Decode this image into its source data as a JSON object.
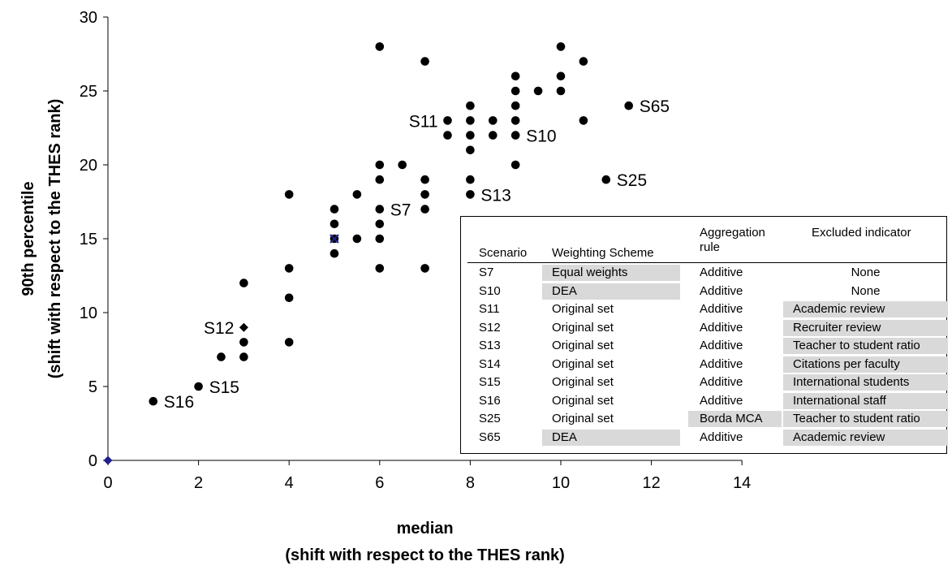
{
  "chart_data": {
    "type": "scatter",
    "xlabel": [
      "median",
      "(shift with respect to the THES rank)"
    ],
    "ylabel": [
      "90th percentile",
      "(shift with respect to the THES rank)"
    ],
    "xlim": [
      0,
      14
    ],
    "ylim": [
      0,
      30
    ],
    "xticks": [
      "0",
      "2",
      "4",
      "6",
      "8",
      "10",
      "12",
      "14"
    ],
    "yticks": [
      "0",
      "5",
      "10",
      "15",
      "20",
      "25",
      "30"
    ],
    "grid": false,
    "marker_color": "#000000",
    "origin_marker_color": "#1f1f8f",
    "points": [
      {
        "x": 1,
        "y": 4
      },
      {
        "x": 2,
        "y": 5
      },
      {
        "x": 2.5,
        "y": 7
      },
      {
        "x": 3,
        "y": 7
      },
      {
        "x": 3,
        "y": 8
      },
      {
        "x": 3,
        "y": 12
      },
      {
        "x": 4,
        "y": 8
      },
      {
        "x": 4,
        "y": 11
      },
      {
        "x": 4,
        "y": 13
      },
      {
        "x": 4,
        "y": 18
      },
      {
        "x": 5,
        "y": 14
      },
      {
        "x": 5,
        "y": 16
      },
      {
        "x": 5,
        "y": 17
      },
      {
        "x": 5.5,
        "y": 15
      },
      {
        "x": 5.5,
        "y": 18
      },
      {
        "x": 6,
        "y": 13
      },
      {
        "x": 6,
        "y": 15
      },
      {
        "x": 6,
        "y": 16
      },
      {
        "x": 6,
        "y": 17
      },
      {
        "x": 6,
        "y": 19
      },
      {
        "x": 6,
        "y": 20
      },
      {
        "x": 6,
        "y": 28
      },
      {
        "x": 6.5,
        "y": 20
      },
      {
        "x": 7,
        "y": 13
      },
      {
        "x": 7,
        "y": 17
      },
      {
        "x": 7,
        "y": 18
      },
      {
        "x": 7,
        "y": 19
      },
      {
        "x": 7,
        "y": 27
      },
      {
        "x": 7.5,
        "y": 22
      },
      {
        "x": 7.5,
        "y": 23
      },
      {
        "x": 8,
        "y": 18
      },
      {
        "x": 8,
        "y": 19
      },
      {
        "x": 8,
        "y": 21
      },
      {
        "x": 8,
        "y": 22
      },
      {
        "x": 8,
        "y": 23
      },
      {
        "x": 8,
        "y": 24
      },
      {
        "x": 8.5,
        "y": 22
      },
      {
        "x": 8.5,
        "y": 23
      },
      {
        "x": 9,
        "y": 20
      },
      {
        "x": 9,
        "y": 22
      },
      {
        "x": 9,
        "y": 23
      },
      {
        "x": 9,
        "y": 24
      },
      {
        "x": 9,
        "y": 25
      },
      {
        "x": 9,
        "y": 26
      },
      {
        "x": 9.5,
        "y": 25
      },
      {
        "x": 10,
        "y": 25
      },
      {
        "x": 10,
        "y": 26
      },
      {
        "x": 10,
        "y": 28
      },
      {
        "x": 10.5,
        "y": 23
      },
      {
        "x": 10.5,
        "y": 27
      },
      {
        "x": 11,
        "y": 19
      },
      {
        "x": 11.5,
        "y": 24
      }
    ],
    "special_points": [
      {
        "x": 0,
        "y": 0,
        "marker": "diamond",
        "color": "#1f1f8f"
      },
      {
        "x": 3,
        "y": 9,
        "marker": "diamond",
        "color": "#000000"
      },
      {
        "x": 5,
        "y": 15,
        "marker": "x",
        "color": "#1f1f8f"
      }
    ],
    "annotations": [
      {
        "text": "S7",
        "x": 6,
        "y": 17,
        "anchor": "right"
      },
      {
        "text": "S10",
        "x": 9,
        "y": 22,
        "anchor": "right"
      },
      {
        "text": "S11",
        "x": 7.5,
        "y": 23,
        "anchor": "left"
      },
      {
        "text": "S12",
        "x": 3,
        "y": 9,
        "anchor": "left"
      },
      {
        "text": "S13",
        "x": 8,
        "y": 18,
        "anchor": "right"
      },
      {
        "text": "S15",
        "x": 2,
        "y": 5,
        "anchor": "right"
      },
      {
        "text": "S16",
        "x": 1,
        "y": 4,
        "anchor": "right"
      },
      {
        "text": "S25",
        "x": 11,
        "y": 19,
        "anchor": "right"
      },
      {
        "text": "S65",
        "x": 11.5,
        "y": 24,
        "anchor": "right"
      }
    ]
  },
  "legend_table": {
    "headers": {
      "scenario": "Scenario",
      "weighting": "Weighting Scheme",
      "aggregation_1": "Aggregation",
      "aggregation_2": "rule",
      "excluded": "Excluded indicator"
    },
    "highlight_color": "#d9d9d9",
    "rows": [
      {
        "scenario": "S7",
        "weighting": "Equal weights",
        "aggregation": "Additive",
        "excluded": "None",
        "hl_w": true,
        "hl_a": false,
        "hl_e": false,
        "center_e": true
      },
      {
        "scenario": "S10",
        "weighting": "DEA",
        "aggregation": "Additive",
        "excluded": "None",
        "hl_w": true,
        "hl_a": false,
        "hl_e": false,
        "center_e": true
      },
      {
        "scenario": "S11",
        "weighting": "Original set",
        "aggregation": "Additive",
        "excluded": "Academic review",
        "hl_w": false,
        "hl_a": false,
        "hl_e": true,
        "center_e": false
      },
      {
        "scenario": "S12",
        "weighting": "Original set",
        "aggregation": "Additive",
        "excluded": "Recruiter review",
        "hl_w": false,
        "hl_a": false,
        "hl_e": true,
        "center_e": false
      },
      {
        "scenario": "S13",
        "weighting": "Original set",
        "aggregation": "Additive",
        "excluded": "Teacher to student ratio",
        "hl_w": false,
        "hl_a": false,
        "hl_e": true,
        "center_e": false
      },
      {
        "scenario": "S14",
        "weighting": "Original set",
        "aggregation": "Additive",
        "excluded": "Citations per faculty",
        "hl_w": false,
        "hl_a": false,
        "hl_e": true,
        "center_e": false
      },
      {
        "scenario": "S15",
        "weighting": "Original set",
        "aggregation": "Additive",
        "excluded": "International students",
        "hl_w": false,
        "hl_a": false,
        "hl_e": true,
        "center_e": false
      },
      {
        "scenario": "S16",
        "weighting": "Original set",
        "aggregation": "Additive",
        "excluded": "International staff",
        "hl_w": false,
        "hl_a": false,
        "hl_e": true,
        "center_e": false
      },
      {
        "scenario": "S25",
        "weighting": "Original set",
        "aggregation": "Borda MCA",
        "excluded": "Teacher to student ratio",
        "hl_w": false,
        "hl_a": true,
        "hl_e": true,
        "center_e": false
      },
      {
        "scenario": "S65",
        "weighting": "DEA",
        "aggregation": "Additive",
        "excluded": "Academic review",
        "hl_w": true,
        "hl_a": false,
        "hl_e": true,
        "center_e": false
      }
    ]
  }
}
